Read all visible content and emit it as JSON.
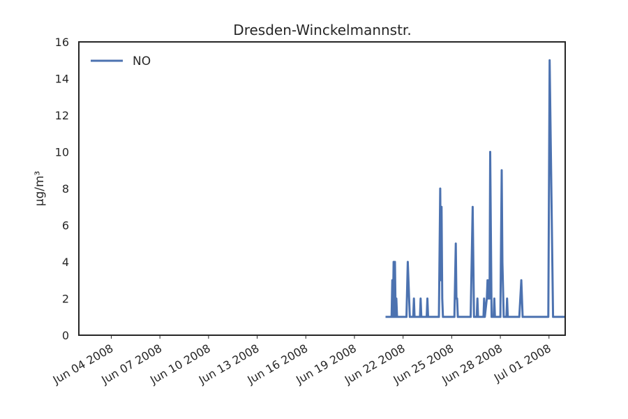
{
  "chart_data": {
    "type": "line",
    "title": "Dresden-Winckelmannstr.",
    "xlabel": "",
    "ylabel": "µg/m³",
    "xlim": [
      "2008-06-02",
      "2008-07-02"
    ],
    "ylim": [
      0,
      16
    ],
    "yticks": [
      0,
      2,
      4,
      6,
      8,
      10,
      12,
      14,
      16
    ],
    "xticks": [
      {
        "date": "2008-06-04",
        "label": "Jun 04 2008"
      },
      {
        "date": "2008-06-07",
        "label": "Jun 07 2008"
      },
      {
        "date": "2008-06-10",
        "label": "Jun 10 2008"
      },
      {
        "date": "2008-06-13",
        "label": "Jun 13 2008"
      },
      {
        "date": "2008-06-16",
        "label": "Jun 16 2008"
      },
      {
        "date": "2008-06-19",
        "label": "Jun 19 2008"
      },
      {
        "date": "2008-06-22",
        "label": "Jun 22 2008"
      },
      {
        "date": "2008-06-25",
        "label": "Jun 25 2008"
      },
      {
        "date": "2008-06-28",
        "label": "Jun 28 2008"
      },
      {
        "date": "2008-07-01",
        "label": "Jul 01 2008"
      }
    ],
    "grid": false,
    "legend": "top-left",
    "series": [
      {
        "name": "NO",
        "color": "#4c72b0",
        "points": [
          [
            "2008-06-20 22:00",
            1
          ],
          [
            "2008-06-21 07:00",
            1
          ],
          [
            "2008-06-21 08:00",
            3
          ],
          [
            "2008-06-21 09:00",
            1
          ],
          [
            "2008-06-21 10:00",
            4
          ],
          [
            "2008-06-21 11:00",
            1
          ],
          [
            "2008-06-21 12:00",
            4
          ],
          [
            "2008-06-21 13:00",
            1
          ],
          [
            "2008-06-21 14:00",
            2
          ],
          [
            "2008-06-21 15:00",
            1
          ],
          [
            "2008-06-22 05:00",
            1
          ],
          [
            "2008-06-22 07:00",
            4
          ],
          [
            "2008-06-22 10:00",
            1
          ],
          [
            "2008-06-22 15:00",
            1
          ],
          [
            "2008-06-22 16:00",
            2
          ],
          [
            "2008-06-22 17:00",
            1
          ],
          [
            "2008-06-23 01:00",
            1
          ],
          [
            "2008-06-23 02:00",
            2
          ],
          [
            "2008-06-23 03:00",
            1
          ],
          [
            "2008-06-23 11:00",
            1
          ],
          [
            "2008-06-23 12:00",
            2
          ],
          [
            "2008-06-23 13:00",
            1
          ],
          [
            "2008-06-24 05:00",
            1
          ],
          [
            "2008-06-24 07:00",
            8
          ],
          [
            "2008-06-24 08:00",
            3
          ],
          [
            "2008-06-24 09:00",
            7
          ],
          [
            "2008-06-24 10:00",
            2
          ],
          [
            "2008-06-24 11:00",
            1
          ],
          [
            "2008-06-25 04:00",
            1
          ],
          [
            "2008-06-25 06:00",
            5
          ],
          [
            "2008-06-25 07:00",
            2
          ],
          [
            "2008-06-25 08:00",
            2
          ],
          [
            "2008-06-25 09:00",
            1
          ],
          [
            "2008-06-26 04:00",
            1
          ],
          [
            "2008-06-26 07:00",
            7
          ],
          [
            "2008-06-26 09:00",
            1
          ],
          [
            "2008-06-26 13:00",
            1
          ],
          [
            "2008-06-26 14:00",
            2
          ],
          [
            "2008-06-26 15:00",
            1
          ],
          [
            "2008-06-26 23:00",
            1
          ],
          [
            "2008-06-27 00:00",
            2
          ],
          [
            "2008-06-27 01:00",
            1
          ],
          [
            "2008-06-27 04:00",
            2
          ],
          [
            "2008-06-27 05:00",
            3
          ],
          [
            "2008-06-27 06:00",
            2
          ],
          [
            "2008-06-27 07:00",
            3
          ],
          [
            "2008-06-27 08:00",
            2
          ],
          [
            "2008-06-27 09:00",
            10
          ],
          [
            "2008-06-27 11:00",
            1
          ],
          [
            "2008-06-27 14:00",
            1
          ],
          [
            "2008-06-27 15:00",
            2
          ],
          [
            "2008-06-27 16:00",
            1
          ],
          [
            "2008-06-28 00:00",
            1
          ],
          [
            "2008-06-28 02:00",
            9
          ],
          [
            "2008-06-28 03:00",
            4
          ],
          [
            "2008-06-28 05:00",
            1
          ],
          [
            "2008-06-28 09:00",
            1
          ],
          [
            "2008-06-28 10:00",
            2
          ],
          [
            "2008-06-28 11:00",
            1
          ],
          [
            "2008-06-29 04:00",
            1
          ],
          [
            "2008-06-29 07:00",
            3
          ],
          [
            "2008-06-29 09:00",
            1
          ],
          [
            "2008-06-30 23:00",
            1
          ],
          [
            "2008-07-01 01:00",
            15
          ],
          [
            "2008-07-01 06:00",
            1
          ],
          [
            "2008-07-02 00:00",
            1
          ]
        ]
      }
    ]
  }
}
